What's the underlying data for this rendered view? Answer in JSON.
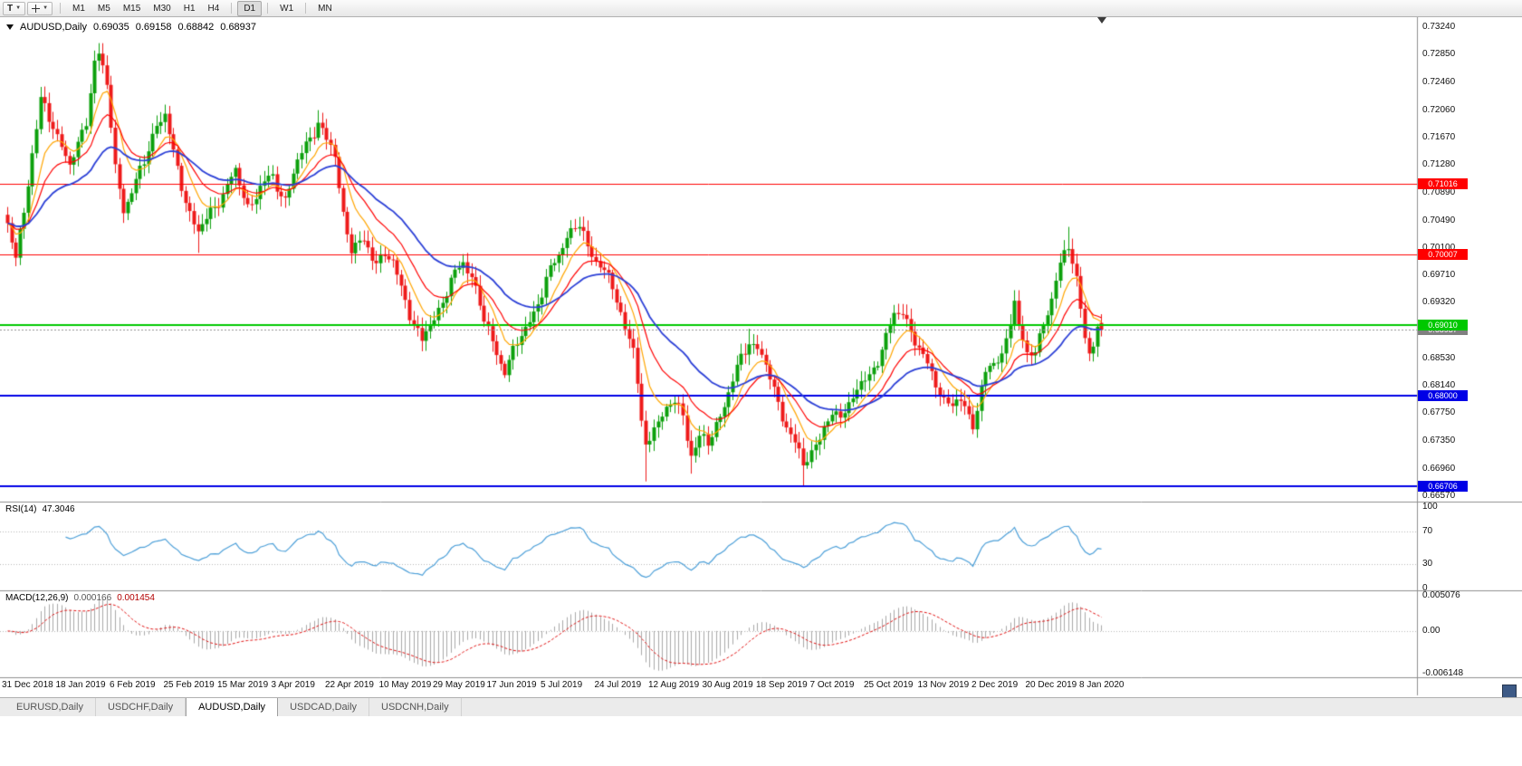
{
  "icons": {
    "dropdown_caret": "▼"
  },
  "toolbar": {
    "text_tool": "T",
    "timeframes": [
      "M1",
      "M5",
      "M15",
      "M30",
      "H1",
      "H4",
      "D1",
      "W1",
      "MN"
    ],
    "active_timeframe": "D1",
    "separators_after": [
      "H4",
      "D1",
      "W1"
    ]
  },
  "chart_header": {
    "symbol_label": "AUDUSD,Daily",
    "open": "0.69035",
    "high": "0.69158",
    "low": "0.68842",
    "close": "0.68937"
  },
  "rsi_panel": {
    "label": "RSI(14)",
    "value": "47.3046",
    "axis_labels": [
      {
        "v": 100,
        "text": "100"
      },
      {
        "v": 70,
        "text": "70"
      },
      {
        "v": 30,
        "text": "30"
      },
      {
        "v": 0,
        "text": "0"
      }
    ]
  },
  "macd_panel": {
    "label": "MACD(12,26,9)",
    "value_main": "0.000166",
    "value_signal": "0.001454"
  },
  "tabs": [
    {
      "label": "EURUSD,Daily",
      "active": false
    },
    {
      "label": "USDCHF,Daily",
      "active": false
    },
    {
      "label": "AUDUSD,Daily",
      "active": true
    },
    {
      "label": "USDCAD,Daily",
      "active": false
    },
    {
      "label": "USDCNH,Daily",
      "active": false
    }
  ],
  "chart_data": {
    "type": "candlestick",
    "symbol": "AUDUSD",
    "timeframe": "Daily",
    "last_ohlc": {
      "open": 0.69035,
      "high": 0.69158,
      "low": 0.68842,
      "close": 0.68937
    },
    "y_range": {
      "min": 0.6657,
      "max": 0.7324
    },
    "y_axis_labels": [
      "0.73240",
      "0.72850",
      "0.72460",
      "0.72060",
      "0.71670",
      "0.71280",
      "0.70890",
      "0.70490",
      "0.70100",
      "0.69710",
      "0.69320",
      "0.68930",
      "0.68530",
      "0.68140",
      "0.67750",
      "0.67350",
      "0.66960",
      "0.66570"
    ],
    "x_labels": [
      "31 Dec 2018",
      "18 Jan 2019",
      "6 Feb 2019",
      "25 Feb 2019",
      "15 Mar 2019",
      "3 Apr 2019",
      "22 Apr 2019",
      "10 May 2019",
      "29 May 2019",
      "17 Jun 2019",
      "5 Jul 2019",
      "24 Jul 2019",
      "12 Aug 2019",
      "30 Aug 2019",
      "18 Sep 2019",
      "7 Oct 2019",
      "25 Oct 2019",
      "13 Nov 2019",
      "2 Dec 2019",
      "20 Dec 2019",
      "8 Jan 2020"
    ],
    "candle_count": 265,
    "candles_per_x_label": 13,
    "close_anchors": [
      [
        0,
        0.704
      ],
      [
        2,
        0.6995
      ],
      [
        4,
        0.706
      ],
      [
        6,
        0.715
      ],
      [
        8,
        0.722
      ],
      [
        10,
        0.719
      ],
      [
        13,
        0.716
      ],
      [
        15,
        0.713
      ],
      [
        17,
        0.715
      ],
      [
        19,
        0.719
      ],
      [
        21,
        0.728
      ],
      [
        22,
        0.729
      ],
      [
        24,
        0.724
      ],
      [
        26,
        0.712
      ],
      [
        28,
        0.707
      ],
      [
        30,
        0.709
      ],
      [
        33,
        0.713
      ],
      [
        36,
        0.719
      ],
      [
        38,
        0.72
      ],
      [
        40,
        0.714
      ],
      [
        43,
        0.708
      ],
      [
        46,
        0.703
      ],
      [
        48,
        0.705
      ],
      [
        52,
        0.709
      ],
      [
        55,
        0.7115
      ],
      [
        58,
        0.707
      ],
      [
        61,
        0.7095
      ],
      [
        64,
        0.711
      ],
      [
        67,
        0.708
      ],
      [
        70,
        0.713
      ],
      [
        73,
        0.717
      ],
      [
        75,
        0.719
      ],
      [
        77,
        0.716
      ],
      [
        79,
        0.714
      ],
      [
        81,
        0.706
      ],
      [
        83,
        0.701
      ],
      [
        86,
        0.7015
      ],
      [
        89,
        0.6995
      ],
      [
        91,
        0.7
      ],
      [
        93,
        0.6985
      ],
      [
        96,
        0.694
      ],
      [
        98,
        0.69
      ],
      [
        100,
        0.6875
      ],
      [
        102,
        0.69
      ],
      [
        104,
        0.6925
      ],
      [
        107,
        0.696
      ],
      [
        110,
        0.699
      ],
      [
        112,
        0.6975
      ],
      [
        115,
        0.6905
      ],
      [
        118,
        0.686
      ],
      [
        120,
        0.684
      ],
      [
        123,
        0.687
      ],
      [
        126,
        0.691
      ],
      [
        129,
        0.6945
      ],
      [
        132,
        0.699
      ],
      [
        135,
        0.703
      ],
      [
        138,
        0.704
      ],
      [
        140,
        0.701
      ],
      [
        143,
        0.699
      ],
      [
        146,
        0.695
      ],
      [
        149,
        0.69
      ],
      [
        151,
        0.687
      ],
      [
        152,
        0.682
      ],
      [
        153,
        0.6755
      ],
      [
        154,
        0.672
      ],
      [
        156,
        0.676
      ],
      [
        158,
        0.6775
      ],
      [
        161,
        0.679
      ],
      [
        163,
        0.677
      ],
      [
        165,
        0.672
      ],
      [
        167,
        0.674
      ],
      [
        169,
        0.6728
      ],
      [
        171,
        0.676
      ],
      [
        174,
        0.6805
      ],
      [
        177,
        0.685
      ],
      [
        179,
        0.688
      ],
      [
        181,
        0.687
      ],
      [
        183,
        0.684
      ],
      [
        185,
        0.6805
      ],
      [
        187,
        0.6775
      ],
      [
        189,
        0.6745
      ],
      [
        191,
        0.6715
      ],
      [
        192,
        0.67
      ],
      [
        194,
        0.672
      ],
      [
        195,
        0.6735
      ],
      [
        197,
        0.6755
      ],
      [
        200,
        0.677
      ],
      [
        203,
        0.679
      ],
      [
        206,
        0.6815
      ],
      [
        208,
        0.6825
      ],
      [
        210,
        0.6855
      ],
      [
        212,
        0.6885
      ],
      [
        214,
        0.691
      ],
      [
        216,
        0.692
      ],
      [
        218,
        0.6895
      ],
      [
        220,
        0.6865
      ],
      [
        222,
        0.684
      ],
      [
        224,
        0.682
      ],
      [
        226,
        0.6795
      ],
      [
        228,
        0.6785
      ],
      [
        230,
        0.679
      ],
      [
        232,
        0.6775
      ],
      [
        233,
        0.6765
      ],
      [
        234,
        0.6782
      ],
      [
        236,
        0.683
      ],
      [
        238,
        0.6845
      ],
      [
        240,
        0.686
      ],
      [
        242,
        0.691
      ],
      [
        243,
        0.693
      ],
      [
        244,
        0.689
      ],
      [
        246,
        0.686
      ],
      [
        248,
        0.687
      ],
      [
        250,
        0.69
      ],
      [
        252,
        0.693
      ],
      [
        254,
        0.699
      ],
      [
        255,
        0.701
      ],
      [
        256,
        0.702
      ],
      [
        257,
        0.699
      ],
      [
        258,
        0.696
      ],
      [
        259,
        0.692
      ],
      [
        260,
        0.688
      ],
      [
        261,
        0.6858
      ],
      [
        262,
        0.6875
      ],
      [
        263,
        0.69
      ],
      [
        264,
        0.68937
      ]
    ],
    "spike_highs": [
      [
        22,
        0.73
      ],
      [
        38,
        0.721
      ],
      [
        75,
        0.7206
      ],
      [
        137,
        0.705
      ],
      [
        179,
        0.6895
      ],
      [
        215,
        0.693
      ],
      [
        243,
        0.6945
      ],
      [
        256,
        0.704
      ]
    ],
    "spike_lows": [
      [
        2,
        0.6984
      ],
      [
        46,
        0.7003
      ],
      [
        100,
        0.6865
      ],
      [
        120,
        0.6832
      ],
      [
        154,
        0.6678
      ],
      [
        165,
        0.6689
      ],
      [
        192,
        0.667
      ],
      [
        233,
        0.6754
      ],
      [
        261,
        0.6849
      ]
    ],
    "colors": {
      "up": "#0CA00C",
      "down": "#EE1A1A",
      "rsi": "#4C9FD8",
      "macd_hist": "#A8A8A8",
      "macd_signal": "#E01010",
      "current_line": "#909090"
    },
    "moving_averages": [
      {
        "period": 8,
        "color": "#FFA500",
        "width": 1.2
      },
      {
        "period": 16,
        "color": "#FF0000",
        "width": 1.2
      },
      {
        "period": 34,
        "color": "#2B3FD6",
        "width": 1.8
      }
    ],
    "levels": [
      {
        "price": 0.71016,
        "label": "0.71016",
        "color": "#FF0000",
        "width": 1
      },
      {
        "price": 0.70007,
        "label": "0.70007",
        "color": "#FF0000",
        "width": 1
      },
      {
        "price": 0.6901,
        "label": "0.69010",
        "color": "#00C800",
        "width": 2
      },
      {
        "price": 0.68,
        "label": "0.68000",
        "color": "#0000E6",
        "width": 2
      },
      {
        "price": 0.66706,
        "label": "0.66706",
        "color": "#0000E6",
        "width": 2
      }
    ],
    "current_price": {
      "value": 0.68937,
      "label": "0.68937"
    },
    "rsi": {
      "period": 14,
      "current": 47.3046,
      "levels": [
        70,
        30
      ]
    },
    "macd": {
      "fast": 12,
      "slow": 26,
      "signal": 9,
      "current_main": 0.000166,
      "current_signal": 0.001454,
      "axis_labels": [
        {
          "v": 0.005076,
          "text": "0.005076"
        },
        {
          "v": 0,
          "text": "0.00"
        },
        {
          "v": -0.006148,
          "text": "-0.006148"
        }
      ]
    }
  }
}
